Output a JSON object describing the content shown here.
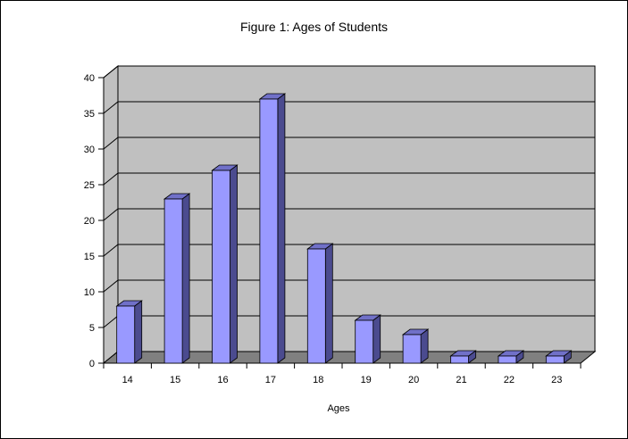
{
  "chart_data": {
    "type": "bar",
    "title": "Figure 1: Ages of Students",
    "xlabel": "Ages",
    "ylabel": "",
    "categories": [
      "14",
      "15",
      "16",
      "17",
      "18",
      "19",
      "20",
      "21",
      "22",
      "23"
    ],
    "values": [
      8,
      23,
      27,
      37,
      16,
      6,
      4,
      1,
      1,
      1
    ],
    "ylim": [
      0,
      40
    ],
    "yticks": [
      0,
      5,
      10,
      15,
      20,
      25,
      30,
      35,
      40
    ],
    "grid": true,
    "legend": "none",
    "style": "3d-column",
    "colors": {
      "bar_front": "#9999ff",
      "bar_side": "#4b4b8f",
      "bar_top": "#7070c8",
      "wall": "#c0c0c0",
      "floor": "#808080",
      "grid": "#000000"
    }
  }
}
